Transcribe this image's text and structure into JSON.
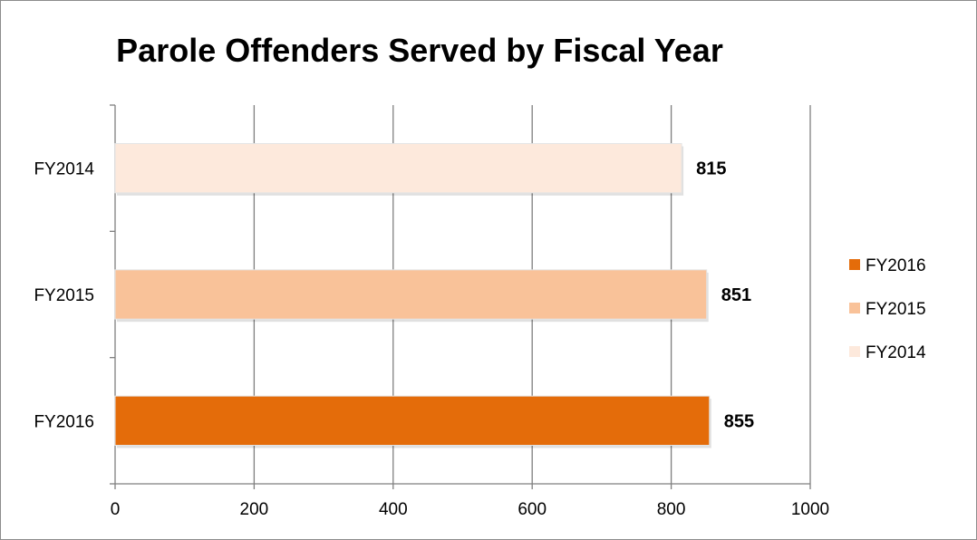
{
  "chart_data": {
    "type": "bar",
    "orientation": "horizontal",
    "title": "Parole Offenders Served by Fiscal Year",
    "xlabel": "",
    "ylabel": "",
    "xlim": [
      0,
      1000
    ],
    "x_ticks": [
      0,
      200,
      400,
      600,
      800,
      1000
    ],
    "grid": true,
    "legend_position": "right",
    "categories": [
      "FY2014",
      "FY2015",
      "FY2016"
    ],
    "values": [
      815,
      851,
      855
    ],
    "colors": [
      "#fde9dc",
      "#f9c299",
      "#e46c0a"
    ],
    "legend": [
      {
        "label": "FY2016",
        "color": "#e46c0a"
      },
      {
        "label": "FY2015",
        "color": "#f9c299"
      },
      {
        "label": "FY2014",
        "color": "#fde9dc"
      }
    ]
  }
}
